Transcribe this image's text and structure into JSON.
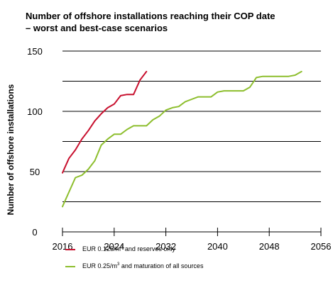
{
  "chart_data": {
    "type": "line",
    "title_lines": [
      "Number of offshore installations reaching their COP date",
      "– worst and best-case scenarios"
    ],
    "xlabel": "",
    "ylabel": "Number of offshore installations",
    "xlim": [
      2016,
      2056
    ],
    "ylim": [
      0,
      150
    ],
    "x_ticks": [
      2016,
      2024,
      2032,
      2040,
      2048,
      2056
    ],
    "y_ticks": [
      0,
      50,
      100,
      150
    ],
    "grid": "horizontal",
    "legend_position": "bottom",
    "series": [
      {
        "name": "EUR 0.125/m³ and reserves only",
        "legend_pre": "EUR 0.125/m",
        "legend_sup": "3",
        "legend_post": " and reserves only",
        "color": "#c8102e",
        "x": [
          2016,
          2017,
          2018,
          2019,
          2020,
          2021,
          2022,
          2023,
          2024,
          2025,
          2026,
          2027,
          2028,
          2029
        ],
        "y": [
          49,
          61,
          68,
          77,
          84,
          92,
          98,
          103,
          106,
          113,
          114,
          114,
          126,
          133
        ]
      },
      {
        "name": "EUR 0.25/m³ and maturation of all sources",
        "legend_pre": "EUR 0.25/m",
        "legend_sup": "3",
        "legend_post": " and maturation of all sources",
        "color": "#8dbe2d",
        "x": [
          2016,
          2017,
          2018,
          2019,
          2020,
          2021,
          2022,
          2023,
          2024,
          2025,
          2026,
          2027,
          2028,
          2029,
          2030,
          2031,
          2032,
          2033,
          2034,
          2035,
          2036,
          2037,
          2038,
          2039,
          2040,
          2041,
          2042,
          2043,
          2044,
          2045,
          2046,
          2047,
          2048,
          2049,
          2050,
          2051,
          2052,
          2053
        ],
        "y": [
          21,
          33,
          45,
          47,
          52,
          59,
          72,
          77,
          81,
          81,
          85,
          88,
          88,
          88,
          93,
          96,
          101,
          103,
          104,
          108,
          110,
          112,
          112,
          112,
          116,
          117,
          117,
          117,
          117,
          120,
          128,
          129,
          129,
          129,
          129,
          129,
          130,
          133
        ]
      }
    ]
  }
}
